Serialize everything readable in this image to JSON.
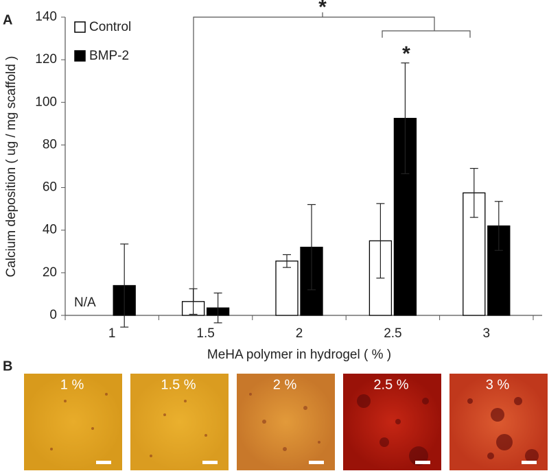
{
  "panel_labels": [
    "A",
    "B"
  ],
  "chart_data": {
    "type": "bar",
    "x_label": "MeHA polymer in hydrogel ( % )",
    "y_label": "Calcium deposition ( ug / mg scaffold )",
    "categories": [
      "1",
      "1.5",
      "2",
      "2.5",
      "3"
    ],
    "series": [
      {
        "name": "Control",
        "color": "#ffffff",
        "values": [
          null,
          6.5,
          25.5,
          35,
          57.5
        ],
        "errors": [
          null,
          6,
          3,
          17.5,
          11.5
        ]
      },
      {
        "name": "BMP-2",
        "color": "#000000",
        "values": [
          14,
          3.5,
          32,
          92.5,
          42
        ],
        "errors": [
          19.5,
          7,
          20,
          26,
          11.5
        ]
      }
    ],
    "ylim": [
      0,
      140
    ],
    "yticks": [
      0,
      20,
      40,
      60,
      80,
      100,
      120,
      140
    ],
    "legend": "top-left",
    "annotations": {
      "na_label": "N/A",
      "significance": [
        "*",
        "*"
      ]
    }
  },
  "panel_b": {
    "labels": [
      "1 %",
      "1.5 %",
      "2 %",
      "2.5 %",
      "3 %"
    ]
  }
}
